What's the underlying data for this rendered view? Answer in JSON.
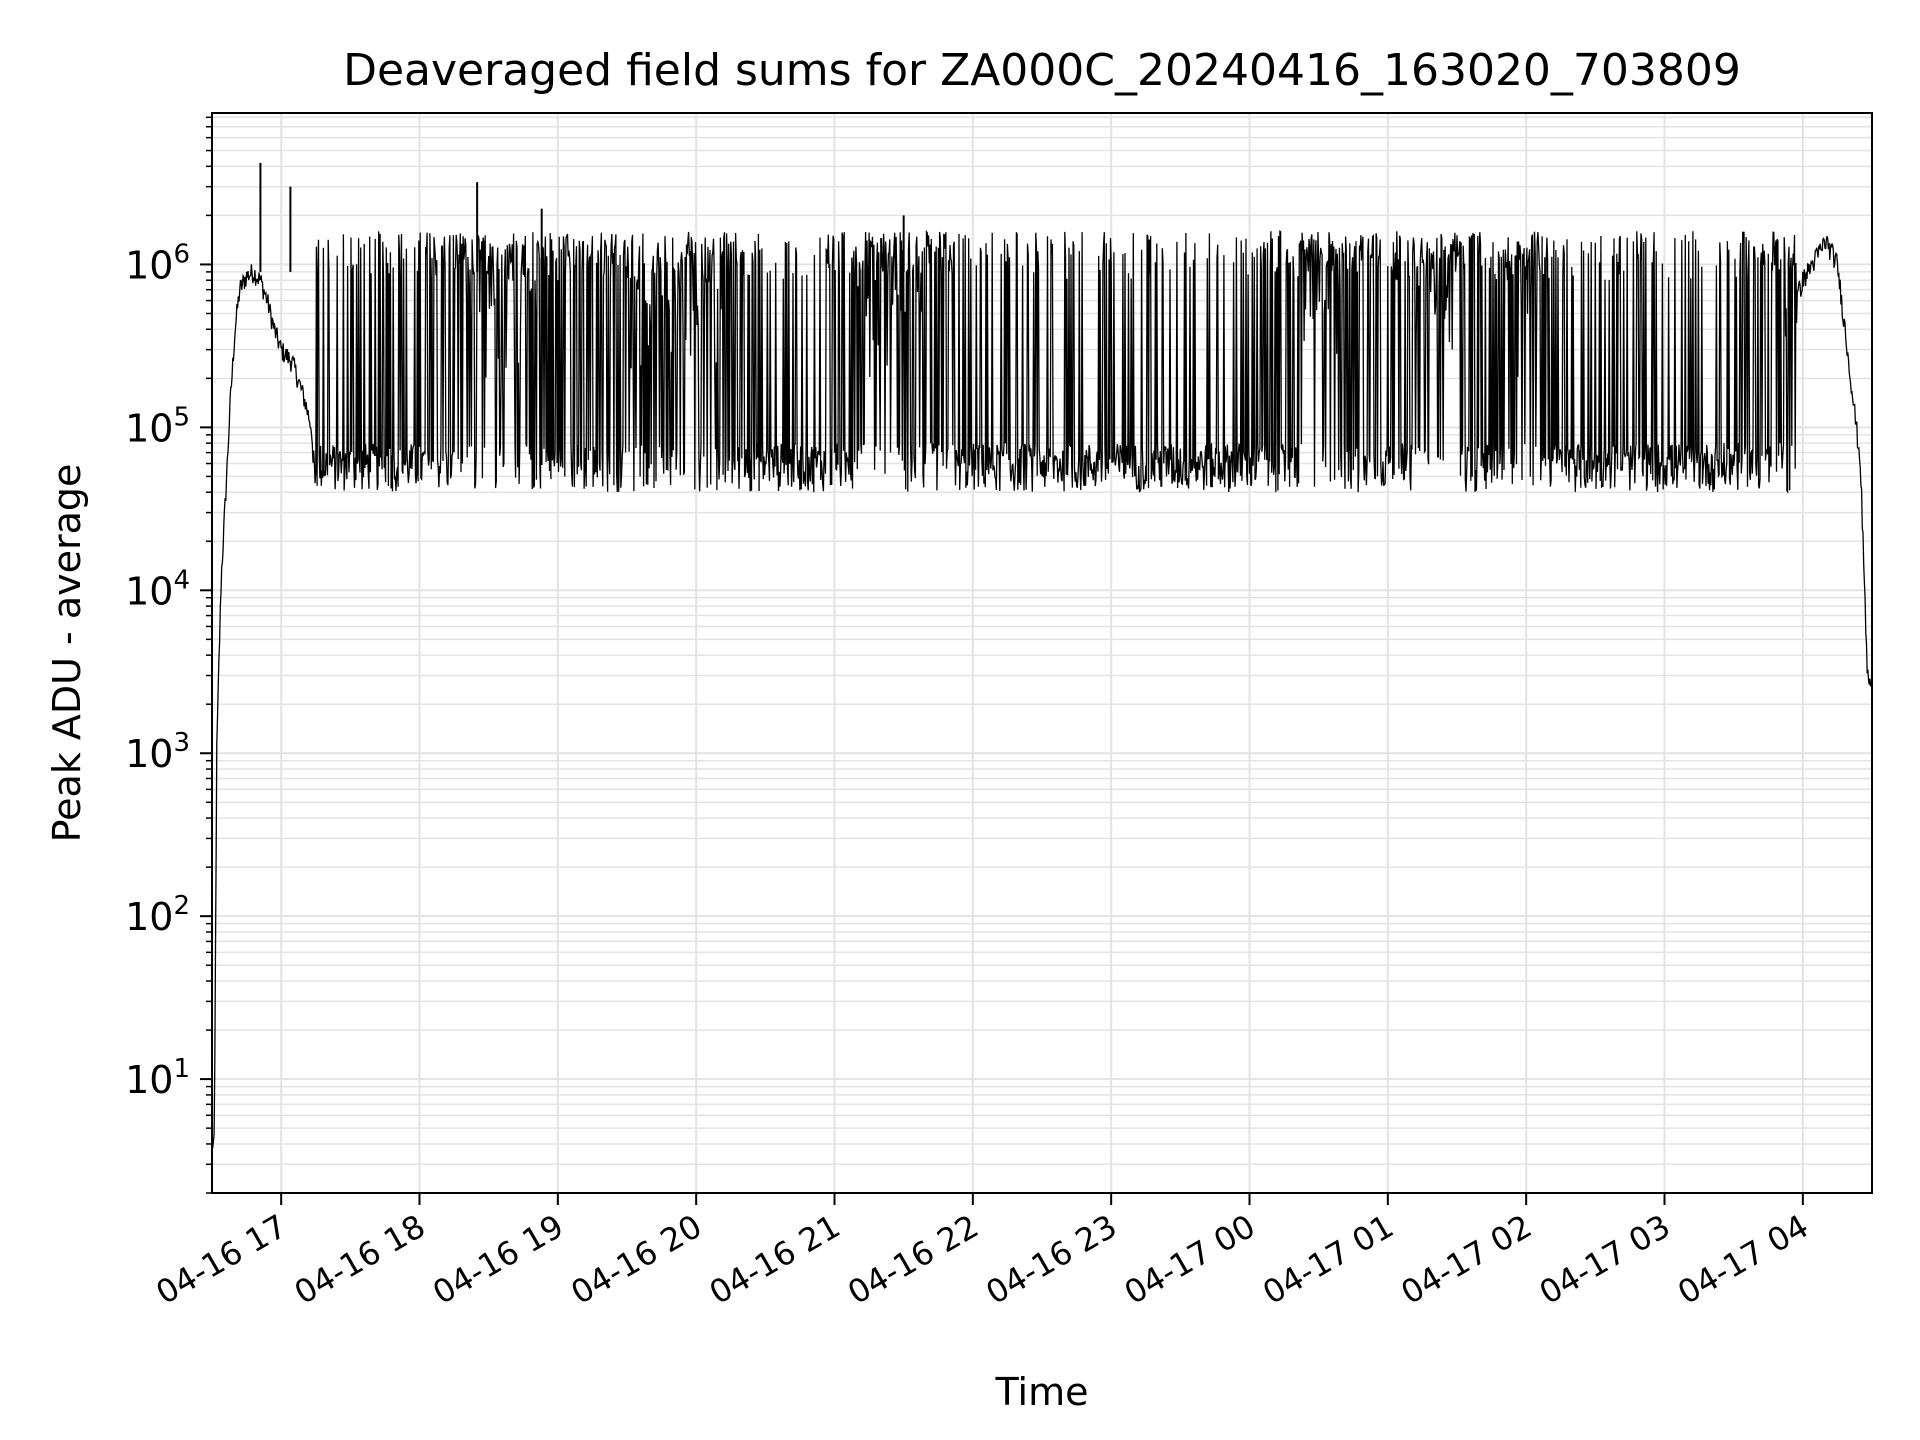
{
  "chart_data": {
    "type": "line",
    "title": "Deaveraged field sums for ZA000C_20240416_163020_703809",
    "xlabel": "Time",
    "ylabel": "Peak ADU - average",
    "y_scale": "log",
    "ylim": [
      2,
      8500000
    ],
    "xlim": [
      "2024-04-16 16:30",
      "2024-04-17 04:30"
    ],
    "grid": "on (major and minor)",
    "colors": {
      "line": "#000000",
      "grid": "#e3e3e3",
      "axes": "#000000",
      "background": "#ffffff"
    },
    "x_ticks": [
      {
        "value": "2024-04-16 17:00",
        "label": "04-16 17"
      },
      {
        "value": "2024-04-16 18:00",
        "label": "04-16 18"
      },
      {
        "value": "2024-04-16 19:00",
        "label": "04-16 19"
      },
      {
        "value": "2024-04-16 20:00",
        "label": "04-16 20"
      },
      {
        "value": "2024-04-16 21:00",
        "label": "04-16 21"
      },
      {
        "value": "2024-04-16 22:00",
        "label": "04-16 22"
      },
      {
        "value": "2024-04-16 23:00",
        "label": "04-16 23"
      },
      {
        "value": "2024-04-17 00:00",
        "label": "04-17 00"
      },
      {
        "value": "2024-04-17 01:00",
        "label": "04-17 01"
      },
      {
        "value": "2024-04-17 02:00",
        "label": "04-17 02"
      },
      {
        "value": "2024-04-17 03:00",
        "label": "04-17 03"
      },
      {
        "value": "2024-04-17 04:00",
        "label": "04-17 04"
      }
    ],
    "y_ticks": [
      {
        "value": 10,
        "base": "10",
        "exp": "1"
      },
      {
        "value": 100,
        "base": "10",
        "exp": "2"
      },
      {
        "value": 1000,
        "base": "10",
        "exp": "3"
      },
      {
        "value": 10000,
        "base": "10",
        "exp": "4"
      },
      {
        "value": 100000,
        "base": "10",
        "exp": "5"
      },
      {
        "value": 1000000,
        "base": "10",
        "exp": "6"
      }
    ],
    "series": [
      {
        "x": [
          "2024-04-16 16:30",
          "2024-04-16 16:31",
          "2024-04-16 16:32",
          "2024-04-16 16:33",
          "2024-04-16 16:34",
          "2024-04-16 16:36",
          "2024-04-16 16:38",
          "2024-04-16 16:40",
          "2024-04-16 16:42",
          "2024-04-16 16:45",
          "2024-04-16 16:48",
          "2024-04-16 16:51",
          "2024-04-16 16:54",
          "2024-04-16 16:57",
          "2024-04-16 17:00",
          "2024-04-16 17:05",
          "2024-04-16 17:10",
          "2024-04-16 17:15",
          "2024-04-16 17:20",
          "2024-04-16 17:30",
          "2024-04-16 17:45",
          "2024-04-16 18:00",
          "2024-04-16 18:15",
          "2024-04-16 18:30",
          "2024-04-16 18:45",
          "2024-04-16 19:00",
          "2024-04-16 19:15",
          "2024-04-16 19:30",
          "2024-04-16 19:45",
          "2024-04-16 20:00",
          "2024-04-16 20:15",
          "2024-04-16 20:30",
          "2024-04-16 20:45",
          "2024-04-16 21:00",
          "2024-04-16 21:15",
          "2024-04-16 21:30",
          "2024-04-16 21:45",
          "2024-04-16 22:00",
          "2024-04-16 22:15",
          "2024-04-16 22:30",
          "2024-04-16 22:45",
          "2024-04-16 23:00",
          "2024-04-16 23:15",
          "2024-04-16 23:30",
          "2024-04-16 23:45",
          "2024-04-17 00:00",
          "2024-04-17 00:15",
          "2024-04-17 00:30",
          "2024-04-17 00:45",
          "2024-04-17 01:00",
          "2024-04-17 01:15",
          "2024-04-17 01:30",
          "2024-04-17 01:45",
          "2024-04-17 02:00",
          "2024-04-17 02:15",
          "2024-04-17 02:30",
          "2024-04-17 02:45",
          "2024-04-17 03:00",
          "2024-04-17 03:15",
          "2024-04-17 03:30",
          "2024-04-17 03:45",
          "2024-04-17 04:00",
          "2024-04-17 04:10",
          "2024-04-17 04:15",
          "2024-04-17 04:20",
          "2024-04-17 04:25",
          "2024-04-17 04:28",
          "2024-04-17 04:30"
        ],
        "y": [
          4,
          4,
          900,
          3500,
          12000,
          40000,
          150000,
          400000,
          700000,
          850000,
          900000,
          800000,
          600000,
          400000,
          300000,
          250000,
          150000,
          80000,
          60000,
          65000,
          60000,
          55000,
          300000,
          1000000,
          600000,
          250000,
          200000,
          400000,
          500000,
          900000,
          300000,
          65000,
          60000,
          80000,
          900000,
          1200000,
          150000,
          70000,
          65000,
          55000,
          50000,
          45000,
          45000,
          40000,
          42000,
          45000,
          200000,
          900000,
          250000,
          45000,
          1000000,
          600000,
          60000,
          1000000,
          65000,
          60000,
          55000,
          50000,
          50000,
          55000,
          200000,
          800000,
          1400000,
          1000000,
          250000,
          60000,
          3000,
          2500
        ]
      }
    ],
    "spikes": [
      {
        "x": "2024-04-16 16:51",
        "y": 4200000
      },
      {
        "x": "2024-04-16 17:04",
        "y": 3000000
      },
      {
        "x": "2024-04-16 18:25",
        "y": 3200000
      },
      {
        "x": "2024-04-16 18:53",
        "y": 2200000
      },
      {
        "x": "2024-04-16 21:30",
        "y": 2000000
      }
    ]
  }
}
